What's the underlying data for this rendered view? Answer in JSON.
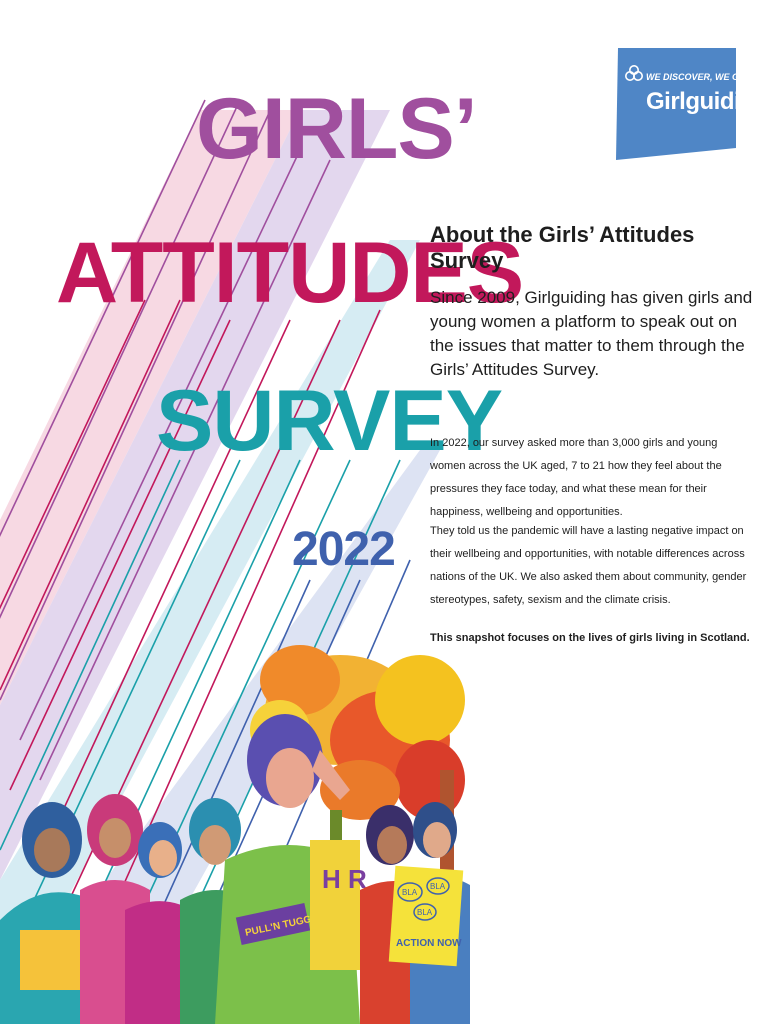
{
  "cover": {
    "title_line1": "GIRLS’",
    "title_line2": "ATTITUDES",
    "title_line3": "SURVEY",
    "year": "2022"
  },
  "logo": {
    "tagline": "WE DISCOVER, WE GROW",
    "name": "Girlguiding",
    "icon": "trefoil-icon"
  },
  "about": {
    "heading": "About the Girls’ Attitudes Survey",
    "intro": "Since 2009, Girlguiding has given girls and young women a platform to speak out on the issues that matter to them through the Girls’ Attitudes Survey.",
    "paragraph1": "In 2022, our survey asked more than 3,000 girls and young women across the UK aged, 7 to 21 how they feel about the pressures they face today, and what these mean for their happiness, wellbeing and opportunities.",
    "paragraph2": "They told us the pandemic will have a lasting negative impact on their wellbeing and opportunities, with notable differences across nations of the UK. We also asked them about community, gender stereotypes, safety, sexism and the climate crisis.",
    "snapshot": "This snapshot focuses on the lives of girls living in Scotland."
  },
  "illustration": {
    "placard_words": [
      "BLA",
      "BLA",
      "BLA",
      "ACTION NOW"
    ],
    "tshirt_text": "PULL'N TUGGS",
    "banner_letters": "H R"
  },
  "colors": {
    "purple": "#a04f9e",
    "magenta": "#c2185b",
    "teal": "#1aa0a9",
    "blue": "#3f61ad",
    "logo_blue": "#4f86c6"
  }
}
